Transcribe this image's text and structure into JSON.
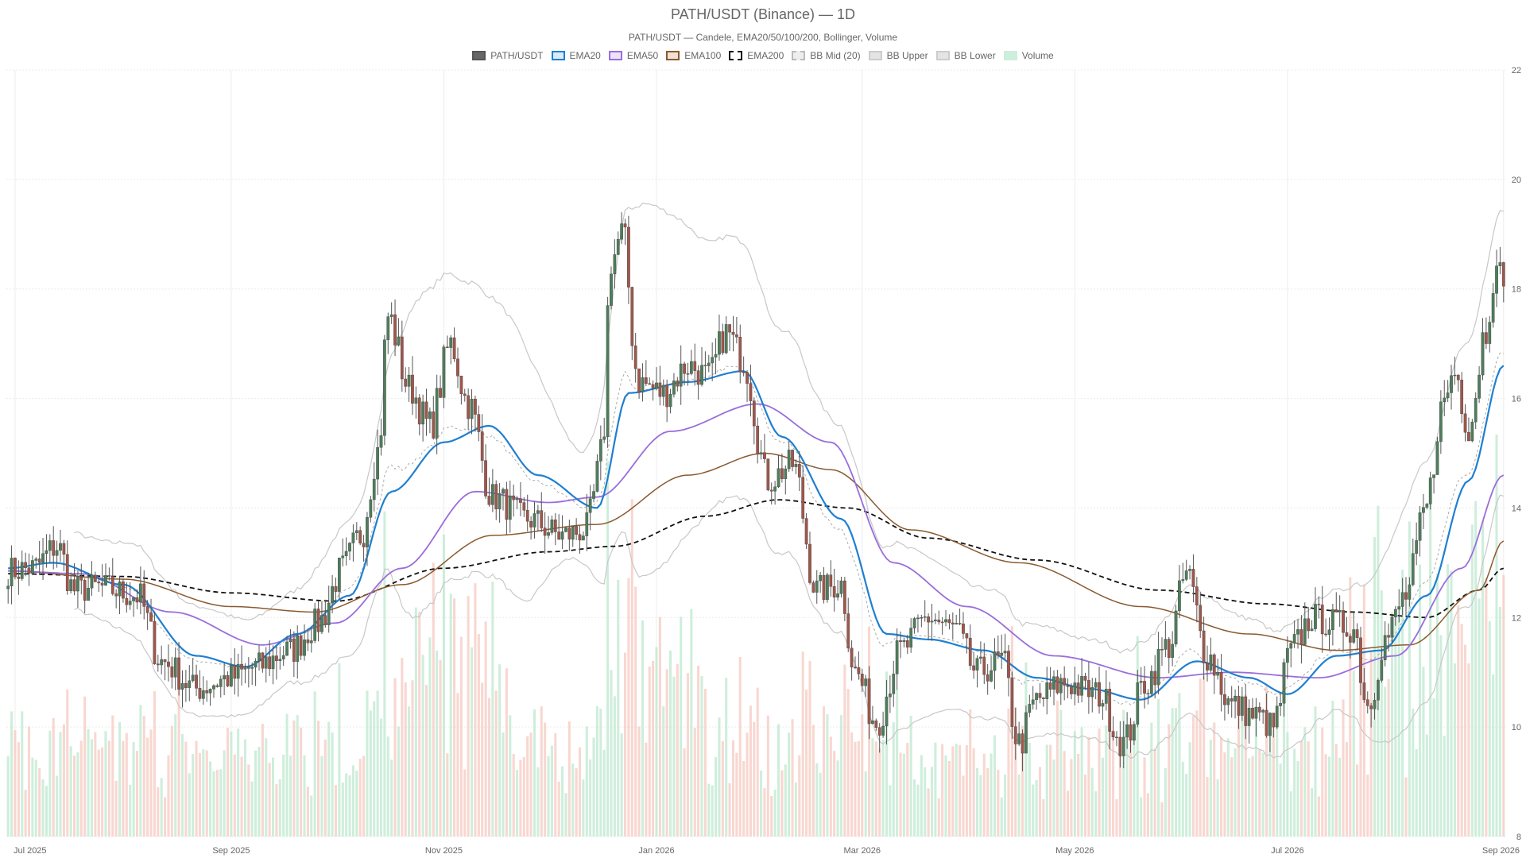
{
  "title": "PATH/USDT (Binance) — 1D",
  "subtitle": "PATH/USDT — Candele, EMA20/50/100/200, Bollinger, Volume",
  "legend": [
    {
      "label": "PATH/USDT",
      "fill": "#666666",
      "border": "#555555",
      "dash": false
    },
    {
      "label": "EMA20",
      "fill": "#d9ebf8",
      "border": "#1f7fd1",
      "dash": false
    },
    {
      "label": "EMA50",
      "fill": "#ece3fa",
      "border": "#9a6ddb",
      "dash": false
    },
    {
      "label": "EMA100",
      "fill": "#f0e1d6",
      "border": "#8a5a30",
      "dash": false
    },
    {
      "label": "EMA200",
      "fill": "#ffffff",
      "border": "#111111",
      "dash": true
    },
    {
      "label": "BB Mid (20)",
      "fill": "#eeeeee",
      "border": "#bbbbbb",
      "dash": true
    },
    {
      "label": "BB Upper",
      "fill": "#e4e4e4",
      "border": "#cccccc",
      "dash": false
    },
    {
      "label": "BB Lower",
      "fill": "#e4e4e4",
      "border": "#cccccc",
      "dash": false
    },
    {
      "label": "Volume",
      "fill": "#cdeedc",
      "border": "#cdeedc",
      "dash": false
    }
  ],
  "chart_data": {
    "type": "candlestick",
    "x_range": [
      "2025-06-29",
      "2026-09-01"
    ],
    "x_ticks": [
      "Jul 2025",
      "Sep 2025",
      "Nov 2025",
      "Jan 2026",
      "Mar 2026",
      "May 2026",
      "Jul 2026",
      "Sep 2026"
    ],
    "x_tick_dates": [
      "2025-07-01",
      "2025-09-01",
      "2025-11-01",
      "2026-01-01",
      "2026-03-01",
      "2026-05-01",
      "2026-07-01",
      "2026-09-01"
    ],
    "ylim": [
      8,
      22
    ],
    "y_ticks": [
      8,
      10,
      12,
      14,
      16,
      18,
      20,
      22
    ],
    "y_axis_position": "right",
    "grid": true,
    "colors": {
      "up": "#4e7d5b",
      "down": "#a0564a",
      "vol_up": "#bde8cf",
      "vol_down": "#f5c9c0",
      "ema20": "#1f7fd1",
      "ema50": "#9a6ddb",
      "ema100": "#8a5a30",
      "ema200": "#111111",
      "bb": "#c8c8c8",
      "bbmid": "#aaaaaa"
    },
    "close_keypoints": [
      [
        "2025-06-29",
        12.85
      ],
      [
        "2025-07-06",
        12.9
      ],
      [
        "2025-07-13",
        13.3
      ],
      [
        "2025-07-18",
        12.5
      ],
      [
        "2025-07-25",
        12.55
      ],
      [
        "2025-08-05",
        12.4
      ],
      [
        "2025-08-12",
        11.2
      ],
      [
        "2025-08-22",
        10.7
      ],
      [
        "2025-09-01",
        10.9
      ],
      [
        "2025-09-08",
        11.1
      ],
      [
        "2025-09-18",
        11.4
      ],
      [
        "2025-09-26",
        11.9
      ],
      [
        "2025-10-03",
        12.9
      ],
      [
        "2025-10-08",
        13.5
      ],
      [
        "2025-10-13",
        15.0
      ],
      [
        "2025-10-16",
        17.5
      ],
      [
        "2025-10-22",
        16.2
      ],
      [
        "2025-10-28",
        15.5
      ],
      [
        "2025-11-03",
        17.0
      ],
      [
        "2025-11-08",
        15.9
      ],
      [
        "2025-11-15",
        14.2
      ],
      [
        "2025-11-25",
        13.8
      ],
      [
        "2025-12-05",
        13.5
      ],
      [
        "2025-12-12",
        13.6
      ],
      [
        "2025-12-16",
        14.8
      ],
      [
        "2025-12-19",
        18.5
      ],
      [
        "2025-12-22",
        19.0
      ],
      [
        "2025-12-27",
        16.3
      ],
      [
        "2026-01-03",
        16.1
      ],
      [
        "2026-01-10",
        16.6
      ],
      [
        "2026-01-16",
        16.4
      ],
      [
        "2026-01-21",
        17.2
      ],
      [
        "2026-01-26",
        16.7
      ],
      [
        "2026-02-02",
        14.5
      ],
      [
        "2026-02-09",
        14.8
      ],
      [
        "2026-02-16",
        12.5
      ],
      [
        "2026-02-23",
        12.6
      ],
      [
        "2026-02-27",
        11.0
      ],
      [
        "2026-03-05",
        10.1
      ],
      [
        "2026-03-12",
        11.4
      ],
      [
        "2026-03-20",
        12.0
      ],
      [
        "2026-03-27",
        11.8
      ],
      [
        "2026-04-03",
        11.0
      ],
      [
        "2026-04-10",
        11.2
      ],
      [
        "2026-04-15",
        9.7
      ],
      [
        "2026-04-20",
        10.5
      ],
      [
        "2026-04-28",
        10.8
      ],
      [
        "2026-05-08",
        10.6
      ],
      [
        "2026-05-15",
        9.7
      ],
      [
        "2026-05-21",
        10.8
      ],
      [
        "2026-05-28",
        11.5
      ],
      [
        "2026-06-02",
        12.8
      ],
      [
        "2026-06-08",
        11.3
      ],
      [
        "2026-06-15",
        10.4
      ],
      [
        "2026-06-22",
        10.2
      ],
      [
        "2026-06-27",
        10.0
      ],
      [
        "2026-07-02",
        11.4
      ],
      [
        "2026-07-08",
        12.0
      ],
      [
        "2026-07-14",
        11.9
      ],
      [
        "2026-07-20",
        11.8
      ],
      [
        "2026-07-24",
        10.4
      ],
      [
        "2026-07-29",
        11.6
      ],
      [
        "2026-08-04",
        12.4
      ],
      [
        "2026-08-10",
        14.0
      ],
      [
        "2026-08-14",
        15.8
      ],
      [
        "2026-08-18",
        16.5
      ],
      [
        "2026-08-22",
        15.5
      ],
      [
        "2026-08-27",
        17.3
      ],
      [
        "2026-08-29",
        18.2
      ],
      [
        "2026-09-01",
        18.3
      ]
    ],
    "ema20_keypoints": [
      [
        "2025-06-29",
        12.9
      ],
      [
        "2025-07-12",
        13.0
      ],
      [
        "2025-08-01",
        12.6
      ],
      [
        "2025-08-22",
        11.3
      ],
      [
        "2025-09-05",
        11.1
      ],
      [
        "2025-09-20",
        11.7
      ],
      [
        "2025-10-05",
        12.4
      ],
      [
        "2025-10-17",
        14.3
      ],
      [
        "2025-11-01",
        15.2
      ],
      [
        "2025-11-14",
        15.5
      ],
      [
        "2025-11-28",
        14.6
      ],
      [
        "2025-12-15",
        14.0
      ],
      [
        "2025-12-24",
        16.1
      ],
      [
        "2026-01-10",
        16.3
      ],
      [
        "2026-01-26",
        16.5
      ],
      [
        "2026-02-06",
        15.3
      ],
      [
        "2026-02-23",
        13.8
      ],
      [
        "2026-03-08",
        11.7
      ],
      [
        "2026-03-20",
        11.6
      ],
      [
        "2026-04-05",
        11.4
      ],
      [
        "2026-04-20",
        10.9
      ],
      [
        "2026-05-05",
        10.7
      ],
      [
        "2026-05-20",
        10.5
      ],
      [
        "2026-06-05",
        11.2
      ],
      [
        "2026-06-20",
        10.9
      ],
      [
        "2026-07-01",
        10.6
      ],
      [
        "2026-07-15",
        11.3
      ],
      [
        "2026-07-28",
        11.4
      ],
      [
        "2026-08-10",
        12.4
      ],
      [
        "2026-08-22",
        14.5
      ],
      [
        "2026-09-01",
        16.6
      ]
    ],
    "ema50_keypoints": [
      [
        "2025-06-29",
        12.85
      ],
      [
        "2025-07-20",
        12.8
      ],
      [
        "2025-08-15",
        12.1
      ],
      [
        "2025-09-10",
        11.5
      ],
      [
        "2025-10-01",
        11.9
      ],
      [
        "2025-10-20",
        12.9
      ],
      [
        "2025-11-10",
        14.3
      ],
      [
        "2025-12-01",
        14.1
      ],
      [
        "2025-12-15",
        14.2
      ],
      [
        "2026-01-05",
        15.4
      ],
      [
        "2026-01-30",
        15.9
      ],
      [
        "2026-02-20",
        15.2
      ],
      [
        "2026-03-10",
        13.0
      ],
      [
        "2026-03-31",
        12.2
      ],
      [
        "2026-04-25",
        11.3
      ],
      [
        "2026-05-25",
        10.9
      ],
      [
        "2026-06-15",
        11.0
      ],
      [
        "2026-07-10",
        10.9
      ],
      [
        "2026-08-01",
        11.3
      ],
      [
        "2026-08-20",
        12.9
      ],
      [
        "2026-09-01",
        14.6
      ]
    ],
    "ema100_keypoints": [
      [
        "2025-06-29",
        12.85
      ],
      [
        "2025-08-01",
        12.7
      ],
      [
        "2025-09-01",
        12.2
      ],
      [
        "2025-09-25",
        12.1
      ],
      [
        "2025-10-20",
        12.6
      ],
      [
        "2025-11-15",
        13.5
      ],
      [
        "2025-12-15",
        13.7
      ],
      [
        "2026-01-10",
        14.6
      ],
      [
        "2026-02-01",
        15.0
      ],
      [
        "2026-02-20",
        14.7
      ],
      [
        "2026-03-15",
        13.6
      ],
      [
        "2026-04-15",
        13.0
      ],
      [
        "2026-05-20",
        12.2
      ],
      [
        "2026-06-20",
        11.7
      ],
      [
        "2026-07-15",
        11.4
      ],
      [
        "2026-08-05",
        11.5
      ],
      [
        "2026-08-25",
        12.5
      ],
      [
        "2026-09-01",
        13.4
      ]
    ],
    "ema200_keypoints": [
      [
        "2025-06-29",
        12.8
      ],
      [
        "2025-08-01",
        12.75
      ],
      [
        "2025-09-01",
        12.45
      ],
      [
        "2025-10-01",
        12.3
      ],
      [
        "2025-11-01",
        12.9
      ],
      [
        "2025-12-01",
        13.2
      ],
      [
        "2025-12-20",
        13.3
      ],
      [
        "2026-01-15",
        13.85
      ],
      [
        "2026-02-05",
        14.15
      ],
      [
        "2026-02-25",
        14.0
      ],
      [
        "2026-03-20",
        13.45
      ],
      [
        "2026-04-20",
        13.05
      ],
      [
        "2026-05-25",
        12.5
      ],
      [
        "2026-06-25",
        12.25
      ],
      [
        "2026-07-20",
        12.1
      ],
      [
        "2026-08-10",
        12.0
      ],
      [
        "2026-08-25",
        12.5
      ],
      [
        "2026-09-01",
        12.9
      ]
    ],
    "bb_width_keypoints": [
      [
        "2025-07-20",
        0.7
      ],
      [
        "2025-08-20",
        1.0
      ],
      [
        "2025-09-15",
        0.8
      ],
      [
        "2025-10-10",
        1.3
      ],
      [
        "2025-10-25",
        2.9
      ],
      [
        "2025-11-20",
        2.5
      ],
      [
        "2025-12-10",
        1.0
      ],
      [
        "2025-12-28",
        3.4
      ],
      [
        "2026-01-20",
        2.4
      ],
      [
        "2026-02-10",
        2.0
      ],
      [
        "2026-03-05",
        1.8
      ],
      [
        "2026-04-01",
        1.2
      ],
      [
        "2026-05-05",
        0.9
      ],
      [
        "2026-06-10",
        1.2
      ],
      [
        "2026-07-15",
        1.1
      ],
      [
        "2026-08-10",
        2.2
      ],
      [
        "2026-09-01",
        2.6
      ]
    ]
  }
}
